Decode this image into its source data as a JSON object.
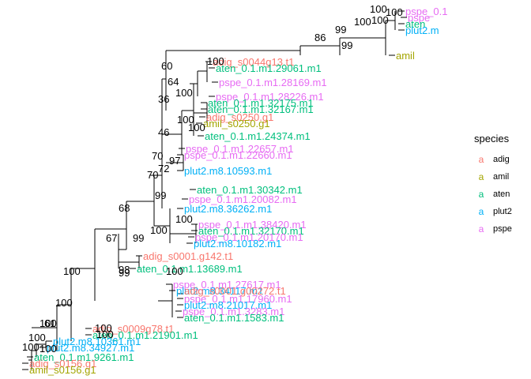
{
  "legend": {
    "title": "species",
    "key_glyph": "a",
    "items": [
      {
        "label": "adig",
        "color": "#F8766D"
      },
      {
        "label": "amil",
        "color": "#A3A500"
      },
      {
        "label": "aten",
        "color": "#00BF7D"
      },
      {
        "label": "plut2",
        "color": "#00B0F6"
      },
      {
        "label": "pspe",
        "color": "#E76BF3"
      }
    ]
  },
  "colors": {
    "adig": "#F8766D",
    "amil": "#A3A500",
    "aten": "#00BF7D",
    "plut2": "#00B0F6",
    "pspe": "#E76BF3",
    "branch": "#000000"
  },
  "tree": {
    "tip_labels": [
      {
        "text": "pspe_0.1",
        "species": "pspe"
      },
      {
        "text": "pspe",
        "species": "pspe"
      },
      {
        "text": "aten",
        "species": "aten"
      },
      {
        "text": "plut2.m",
        "species": "plut2"
      },
      {
        "text": "amil",
        "species": "amil"
      },
      {
        "text": "adig_s0044g13.t1",
        "species": "adig"
      },
      {
        "text": "aten_0.1.m1.29061.m1",
        "species": "aten"
      },
      {
        "text": "pspe_0.1.m1.28169.m1",
        "species": "pspe"
      },
      {
        "text": "pspe_0.1.m1.28226.m1",
        "species": "pspe"
      },
      {
        "text": "aten_0.1.m1.32175.m1",
        "species": "aten"
      },
      {
        "text": "aten_0.1.m1.32167.m1",
        "species": "aten"
      },
      {
        "text": "adig_s0250.g1",
        "species": "adig"
      },
      {
        "text": "amil_s0250.g1",
        "species": "amil"
      },
      {
        "text": "aten_0.1.m1.24374.m1",
        "species": "aten"
      },
      {
        "text": "pspe_0.1.m1.22657.m1",
        "species": "pspe"
      },
      {
        "text": "pspe_0.1.m1.22660.m1",
        "species": "pspe"
      },
      {
        "text": "plut2.m8.10593.m1",
        "species": "plut2"
      },
      {
        "text": "aten_0.1.m1.30342.m1",
        "species": "aten"
      },
      {
        "text": "pspe_0.1.m1.20082.m1",
        "species": "pspe"
      },
      {
        "text": "plut2.m8.36262.m1",
        "species": "plut2"
      },
      {
        "text": "pspe_0.1.m1.38420.m1",
        "species": "pspe"
      },
      {
        "text": "aten_0.1.m1.32170.m1",
        "species": "aten"
      },
      {
        "text": "pspe_0.1.m1.20170.m1",
        "species": "pspe"
      },
      {
        "text": "plut2.m8.10182.m1",
        "species": "plut2"
      },
      {
        "text": "adig_s0001.g142.t1",
        "species": "adig"
      },
      {
        "text": "aten_0.1.m1.13689.m1",
        "species": "aten"
      },
      {
        "text": "pspe_0.1.m1.27617.m1",
        "species": "pspe"
      },
      {
        "text": "plut2.m8.34117.m1",
        "species": "plut2"
      },
      {
        "text": "adig_s0001.g00272.t1",
        "species": "adig"
      },
      {
        "text": "pspe_0.1.m1.17960.m1",
        "species": "pspe"
      },
      {
        "text": "plut2.m8.21017.m1",
        "species": "plut2"
      },
      {
        "text": "pspe_0.1.m1.3283.m1",
        "species": "pspe"
      },
      {
        "text": "aten_0.1.m1.1583.m1",
        "species": "aten"
      },
      {
        "text": "adig_s0009g78.t1",
        "species": "adig"
      },
      {
        "text": "aten_0.1.m1.21901.m1",
        "species": "aten"
      },
      {
        "text": "plut2.m8.10361.m1",
        "species": "plut2"
      },
      {
        "text": "plut2.m8.34927.m1",
        "species": "plut2"
      },
      {
        "text": "aten_0.1.m1.9261.m1",
        "species": "aten"
      },
      {
        "text": "adig_s0156.g1",
        "species": "adig"
      },
      {
        "text": "amil_s0156.g1",
        "species": "amil"
      }
    ],
    "bootstrap_values": [
      {
        "text": "100"
      },
      {
        "text": "100"
      },
      {
        "text": "100"
      },
      {
        "text": "100"
      },
      {
        "text": "99"
      },
      {
        "text": "86"
      },
      {
        "text": "99"
      },
      {
        "text": "60"
      },
      {
        "text": "100"
      },
      {
        "text": "64"
      },
      {
        "text": "100"
      },
      {
        "text": "36"
      },
      {
        "text": "100"
      },
      {
        "text": "100"
      },
      {
        "text": "46"
      },
      {
        "text": "70"
      },
      {
        "text": "97"
      },
      {
        "text": "72"
      },
      {
        "text": "70"
      },
      {
        "text": "99"
      },
      {
        "text": "68"
      },
      {
        "text": "100"
      },
      {
        "text": "99"
      },
      {
        "text": "100"
      },
      {
        "text": "67"
      },
      {
        "text": "99"
      },
      {
        "text": "98"
      },
      {
        "text": "100"
      },
      {
        "text": "100"
      },
      {
        "text": "100"
      },
      {
        "text": "100"
      },
      {
        "text": "100"
      },
      {
        "text": "100"
      },
      {
        "text": "100"
      },
      {
        "text": "61"
      },
      {
        "text": "100"
      },
      {
        "text": "100"
      }
    ]
  }
}
